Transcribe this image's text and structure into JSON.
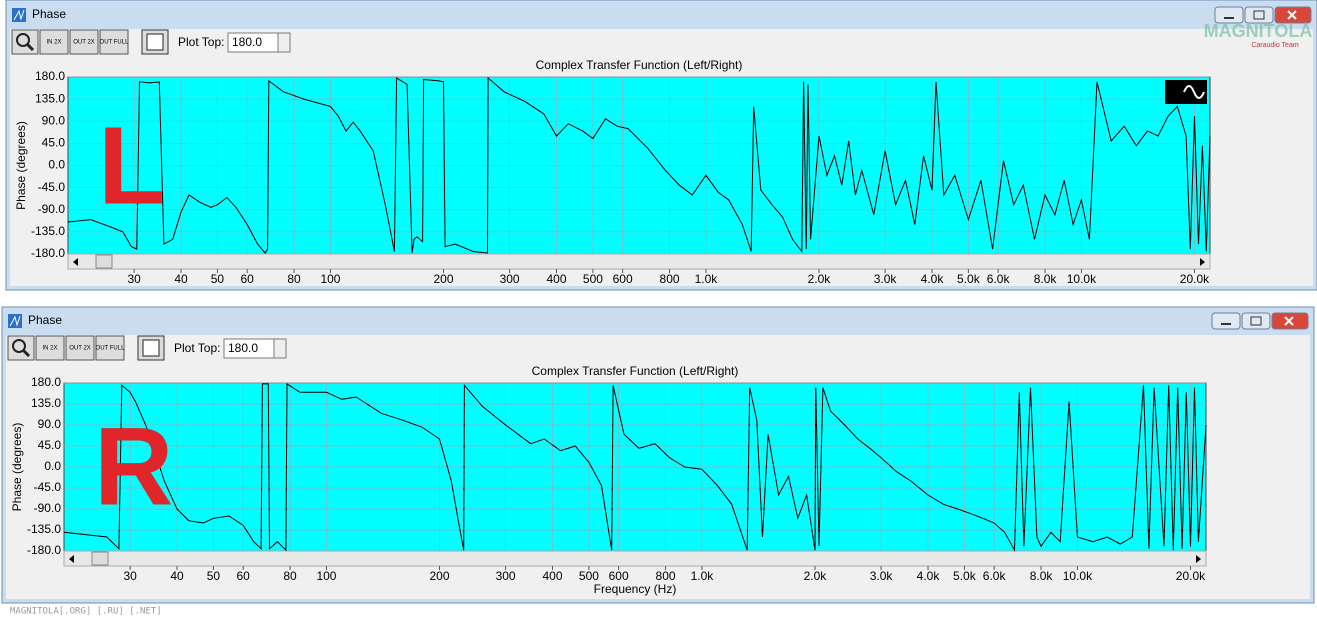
{
  "logo": "MAGNITOLA",
  "logo_sub": "Caraudio Team",
  "watermark": "MAGNITOLA[.ORG] [.RU] [.NET]",
  "windows": [
    {
      "title": "Phase",
      "toolbar": [
        "IN 2X",
        "OUT 2X",
        "OUT FULL"
      ],
      "plot_top_label": "Plot Top:",
      "plot_top_value": "180.0",
      "chart": {
        "type": "line",
        "title": "Complex Transfer Function (Left/Right)",
        "ylabel": "Phase (degrees)",
        "annotation": "L",
        "xlog": true,
        "grid": true,
        "color": "#000000",
        "xlim": [
          20,
          22000
        ],
        "ylim": [
          -180,
          180
        ],
        "xticks": [
          30,
          40,
          50,
          60,
          80,
          100,
          200,
          300,
          400,
          500,
          600,
          800,
          {
            "value": 1000,
            "label": "1.0k"
          },
          {
            "value": 2000,
            "label": "2.0k"
          },
          {
            "value": 3000,
            "label": "3.0k"
          },
          {
            "value": 4000,
            "label": "4.0k"
          },
          {
            "value": 5000,
            "label": "5.0k"
          },
          {
            "value": 6000,
            "label": "6.0k"
          },
          {
            "value": 8000,
            "label": "8.0k"
          },
          {
            "value": 10000,
            "label": "10.0k"
          },
          {
            "value": 20000,
            "label": "20.0k"
          }
        ],
        "yticks": [
          {
            "value": 180,
            "label": "180.0"
          },
          {
            "value": 135,
            "label": "135.0"
          },
          {
            "value": 90,
            "label": "90.0"
          },
          {
            "value": 45,
            "label": "45.0"
          },
          {
            "value": 0,
            "label": "0.0"
          },
          {
            "value": -45,
            "label": "-45.0"
          },
          {
            "value": -90,
            "label": "-90.0"
          },
          {
            "value": -135,
            "label": "-135.0"
          },
          {
            "value": -180,
            "label": "-180.0"
          }
        ],
        "x": [
          20,
          23,
          26,
          28,
          29.5,
          30.5,
          31,
          33,
          35,
          36,
          38,
          40,
          42,
          45,
          48,
          50,
          53,
          56,
          60,
          64,
          67,
          68,
          68.5,
          75,
          85,
          100,
          105,
          110,
          115,
          120,
          130,
          140,
          148,
          150,
          160,
          165,
          167,
          170,
          176,
          177,
          195,
          200,
          202,
          215,
          240,
          262,
          263,
          290,
          330,
          370,
          400,
          430,
          470,
          500,
          540,
          580,
          620,
          700,
          780,
          850,
          920,
          1000,
          1080,
          1150,
          1250,
          1320,
          1340,
          1400,
          1500,
          1600,
          1700,
          1800,
          1820,
          1850,
          1870,
          1900,
          2000,
          2100,
          2200,
          2300,
          2400,
          2500,
          2600,
          2800,
          3000,
          3200,
          3400,
          3600,
          3800,
          4000,
          4100,
          4300,
          4600,
          5000,
          5400,
          5800,
          6200,
          6600,
          7000,
          7500,
          8000,
          8500,
          9000,
          9500,
          10000,
          10500,
          11000,
          12000,
          13000,
          14000,
          15000,
          16000,
          17000,
          18000,
          19000,
          19500,
          20000,
          20500,
          21000,
          21500,
          22000
        ],
        "values": [
          -115,
          -110,
          -125,
          -135,
          -165,
          -170,
          170,
          168,
          170,
          -160,
          -150,
          -95,
          -60,
          -75,
          -85,
          -80,
          -65,
          -85,
          -120,
          -160,
          -178,
          -170,
          172,
          150,
          135,
          120,
          100,
          70,
          88,
          70,
          30,
          -80,
          -175,
          178,
          165,
          -178,
          -150,
          -145,
          -155,
          175,
          172,
          170,
          -165,
          -160,
          -175,
          -178,
          178,
          150,
          130,
          105,
          60,
          85,
          70,
          55,
          95,
          80,
          75,
          35,
          -10,
          -40,
          -60,
          -20,
          -55,
          -70,
          -120,
          -175,
          120,
          -50,
          -80,
          -105,
          -150,
          -175,
          170,
          -170,
          165,
          -150,
          60,
          -20,
          20,
          -40,
          50,
          -60,
          -10,
          -100,
          30,
          -80,
          -30,
          -120,
          20,
          -50,
          170,
          -60,
          -20,
          -110,
          -30,
          -170,
          10,
          -80,
          -40,
          -150,
          -60,
          -100,
          -30,
          -120,
          -70,
          -150,
          170,
          50,
          80,
          40,
          70,
          60,
          100,
          120,
          60,
          -170,
          100,
          -160,
          40,
          -175,
          60
        ]
      }
    },
    {
      "title": "Phase",
      "toolbar": [
        "IN 2X",
        "OUT 2X",
        "OUT FULL"
      ],
      "plot_top_label": "Plot Top:",
      "plot_top_value": "180.0",
      "chart": {
        "type": "line",
        "title": "Complex Transfer Function (Left/Right)",
        "ylabel": "Phase (degrees)",
        "xlabel": "Frequency (Hz)",
        "annotation": "R",
        "xlog": true,
        "grid": true,
        "color": "#000000",
        "xlim": [
          20,
          22000
        ],
        "ylim": [
          -180,
          180
        ],
        "xticks": [
          30,
          40,
          50,
          60,
          80,
          100,
          200,
          300,
          400,
          500,
          600,
          800,
          {
            "value": 1000,
            "label": "1.0k"
          },
          {
            "value": 2000,
            "label": "2.0k"
          },
          {
            "value": 3000,
            "label": "3.0k"
          },
          {
            "value": 4000,
            "label": "4.0k"
          },
          {
            "value": 5000,
            "label": "5.0k"
          },
          {
            "value": 6000,
            "label": "6.0k"
          },
          {
            "value": 8000,
            "label": "8.0k"
          },
          {
            "value": 10000,
            "label": "10.0k"
          },
          {
            "value": 20000,
            "label": "20.0k"
          }
        ],
        "yticks": [
          {
            "value": 180,
            "label": "180.0"
          },
          {
            "value": 135,
            "label": "135.0"
          },
          {
            "value": 90,
            "label": "90.0"
          },
          {
            "value": 45,
            "label": "45.0"
          },
          {
            "value": 0,
            "label": "0.0"
          },
          {
            "value": -45,
            "label": "-45.0"
          },
          {
            "value": -90,
            "label": "-90.0"
          },
          {
            "value": -135,
            "label": "-135.0"
          },
          {
            "value": -180,
            "label": "-180.0"
          }
        ],
        "x": [
          20,
          23,
          26,
          28,
          28.5,
          30,
          31,
          33,
          35,
          37,
          40,
          43,
          47,
          50,
          55,
          60,
          64,
          67,
          67.5,
          70,
          70.5,
          74,
          78,
          78.5,
          85,
          95,
          100,
          110,
          120,
          140,
          160,
          180,
          200,
          215,
          225,
          232,
          233,
          260,
          300,
          350,
          380,
          420,
          460,
          500,
          540,
          575,
          580,
          620,
          680,
          750,
          820,
          900,
          1000,
          1100,
          1200,
          1320,
          1340,
          1400,
          1450,
          1500,
          1600,
          1700,
          1800,
          1900,
          2000,
          2010,
          2050,
          2100,
          2200,
          2400,
          2600,
          2800,
          3000,
          3300,
          3600,
          4000,
          4400,
          4800,
          5200,
          5600,
          6000,
          6400,
          6800,
          7000,
          7200,
          7500,
          7800,
          8000,
          8500,
          9000,
          9500,
          10000,
          11000,
          12000,
          13000,
          14000,
          15000,
          15500,
          16000,
          17000,
          17500,
          18000,
          18500,
          19000,
          19500,
          20000,
          20500,
          21000,
          22000
        ],
        "values": [
          -140,
          -145,
          -150,
          -175,
          175,
          160,
          140,
          90,
          30,
          -30,
          -90,
          -115,
          -120,
          -110,
          -105,
          -125,
          -160,
          -175,
          178,
          178,
          -175,
          -160,
          -178,
          178,
          160,
          160,
          160,
          145,
          150,
          115,
          100,
          85,
          60,
          -30,
          -120,
          -178,
          175,
          130,
          90,
          50,
          60,
          35,
          45,
          10,
          -40,
          -178,
          175,
          70,
          40,
          50,
          20,
          0,
          -5,
          -40,
          -80,
          -178,
          170,
          100,
          -150,
          70,
          -60,
          -20,
          -110,
          -60,
          -178,
          170,
          -170,
          170,
          120,
          90,
          60,
          40,
          20,
          -10,
          -30,
          -60,
          -80,
          -90,
          -100,
          -110,
          -120,
          -140,
          -178,
          160,
          -170,
          170,
          -150,
          -170,
          -140,
          -160,
          140,
          -150,
          -160,
          -150,
          -165,
          -150,
          175,
          -175,
          170,
          -170,
          175,
          -178,
          170,
          -175,
          160,
          -170,
          170,
          -160,
          90
        ]
      }
    }
  ]
}
